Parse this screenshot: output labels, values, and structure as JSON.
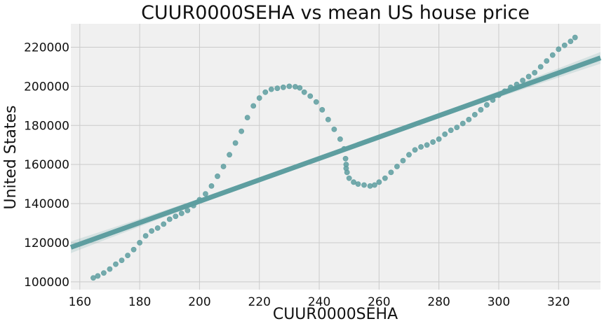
{
  "chart_data": {
    "type": "scatter",
    "title": "CUUR0000SEHA vs mean US house price",
    "xlabel": "CUUR0000SEHA",
    "ylabel": "United States",
    "xlim": [
      157,
      334
    ],
    "ylim": [
      96000,
      232000
    ],
    "xticks": [
      160,
      180,
      200,
      220,
      240,
      260,
      280,
      300,
      320
    ],
    "yticks": [
      100000,
      120000,
      140000,
      160000,
      180000,
      200000,
      220000
    ],
    "xtick_labels": [
      "160",
      "180",
      "200",
      "220",
      "240",
      "260",
      "280",
      "300",
      "320"
    ],
    "ytick_labels": [
      "100000",
      "120000",
      "140000",
      "160000",
      "180000",
      "200000",
      "220000"
    ],
    "grid": true,
    "point_color": "#5e9ea0",
    "background": "#f0f0f0",
    "regression": {
      "slope": 547.5,
      "intercept": 31700,
      "ci_half_width_ends": 3000,
      "ci_half_width_center": 800
    },
    "series": [
      {
        "x": [
          164.5,
          166,
          168,
          170,
          172,
          174,
          176,
          178,
          180,
          182,
          184,
          186,
          188,
          190,
          192,
          194,
          196,
          198,
          200,
          202,
          204,
          206,
          208,
          210,
          212,
          214,
          216,
          218,
          220,
          222,
          224,
          226,
          228,
          230,
          232,
          233.5,
          235,
          237,
          239,
          241,
          243,
          245,
          247,
          248.3,
          248.8,
          249,
          249,
          249.3,
          250,
          251.5,
          253,
          255,
          257,
          258.5,
          260,
          262,
          264,
          266,
          268,
          270,
          272,
          274,
          276,
          278,
          280,
          282,
          284,
          286,
          288,
          290,
          292,
          294,
          296,
          298,
          300,
          302,
          304,
          306,
          308,
          310,
          312,
          314,
          316,
          318,
          320,
          322,
          324,
          325.5
        ],
        "y": [
          102000,
          103000,
          104500,
          106500,
          109000,
          111000,
          113500,
          116500,
          120000,
          123500,
          126000,
          127500,
          129500,
          132000,
          133500,
          135000,
          136500,
          139000,
          142000,
          145000,
          149000,
          154000,
          159000,
          165000,
          171000,
          177000,
          184000,
          190000,
          194000,
          197000,
          198500,
          199000,
          199500,
          200000,
          199800,
          199200,
          197000,
          195000,
          192000,
          188000,
          183000,
          178000,
          173000,
          168000,
          163000,
          160000,
          158000,
          156000,
          153000,
          151000,
          150000,
          149500,
          149000,
          149500,
          151000,
          153000,
          156000,
          159000,
          162000,
          165000,
          167500,
          169000,
          170000,
          171500,
          173000,
          175500,
          177500,
          179000,
          181000,
          183000,
          185500,
          188000,
          190500,
          193000,
          195500,
          197500,
          199500,
          201000,
          203000,
          205000,
          207000,
          210000,
          213000,
          216000,
          219000,
          221000,
          223000,
          225000
        ]
      }
    ]
  }
}
